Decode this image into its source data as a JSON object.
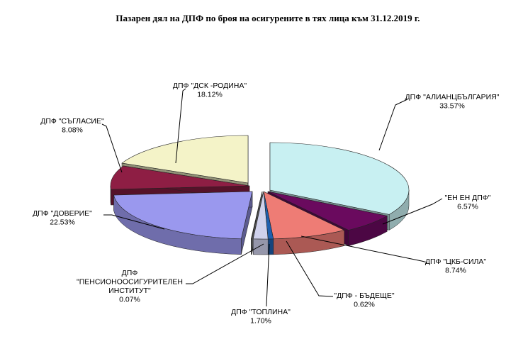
{
  "chart_data": {
    "type": "pie",
    "style": "3d-exploded",
    "title": "Пазарен дял на ДПФ по броя на осигурените в тях лица към 31.12.2019 г.",
    "legend": "none",
    "slices": [
      {
        "name": "ДПФ \"АЛИАНЦБЪЛГАРИЯ\"",
        "value_label": "33.57%",
        "value": 33.57,
        "color": "#c8f0f2"
      },
      {
        "name": "\"ЕН ЕН ДПФ\"",
        "value_label": "6.57%",
        "value": 6.57,
        "color": "#6a0a5e"
      },
      {
        "name": "ДПФ \"ЦКБ-СИЛА\"",
        "value_label": "8.74%",
        "value": 8.74,
        "color": "#ee7c75"
      },
      {
        "name": "\"ДПФ - БЪДЕЩЕ\"",
        "value_label": "0.62%",
        "value": 0.62,
        "color": "#1e5fae"
      },
      {
        "name": "ДПФ \"ТОПЛИНА\"",
        "value_label": "1.70%",
        "value": 1.7,
        "color": "#cfd1ec"
      },
      {
        "name": "ДПФ \"ПЕНСИОНООСИГУРИТЕЛЕН ИНСТИТУТ\"",
        "name_lines": [
          "ДПФ",
          "\"ПЕНСИОНООСИГУРИТЕЛЕН",
          "ИНСТИТУТ\""
        ],
        "value_label": "0.07%",
        "value": 0.07,
        "color": "#8a8a8a"
      },
      {
        "name": "ДПФ \"ДОВЕРИЕ\"",
        "value_label": "22.53%",
        "value": 22.53,
        "color": "#9a98ee"
      },
      {
        "name": "ДПФ \"СЪГЛАСИЕ\"",
        "value_label": "8.08%",
        "value": 8.08,
        "color": "#8e1e44"
      },
      {
        "name": "ДПФ \"ДСК -РОДИНА\"",
        "value_label": "18.12%",
        "value": 18.12,
        "color": "#f4f3c8"
      }
    ]
  }
}
